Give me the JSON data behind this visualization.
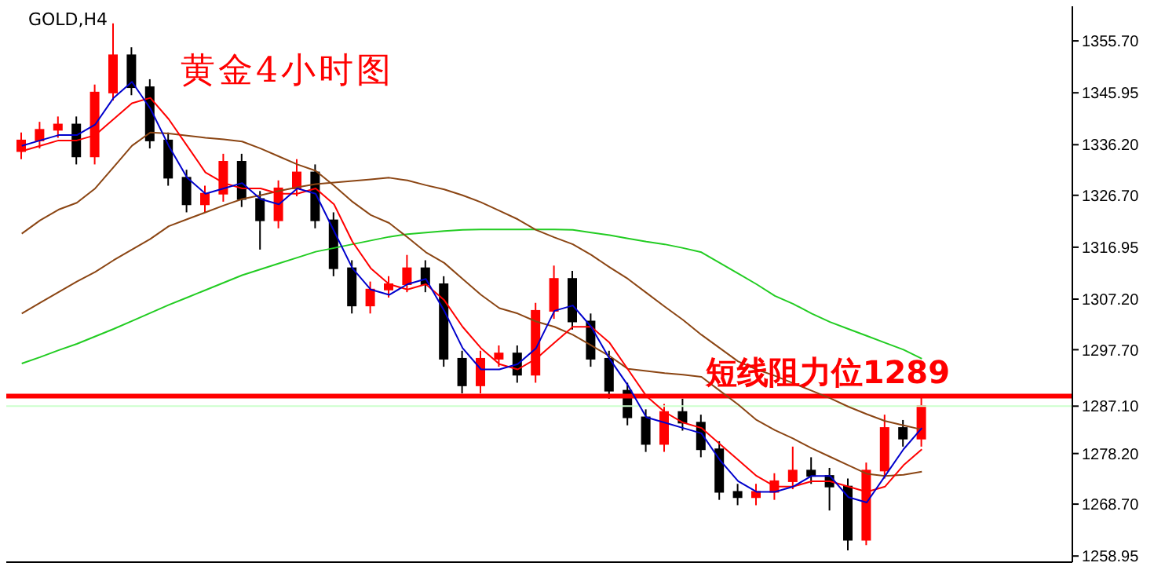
{
  "chart_data": {
    "type": "candlestick",
    "title": "GOLD,H4",
    "subtitle": "黄金4小时图",
    "categories": [
      null,
      null,
      null,
      null,
      null,
      null,
      null,
      null,
      null,
      null,
      null,
      null,
      null,
      null,
      null,
      null,
      null,
      null,
      null,
      null,
      null,
      null,
      null,
      null,
      null,
      null,
      null,
      null,
      null,
      null,
      null,
      null,
      null,
      null,
      null,
      null,
      null,
      null,
      null,
      null,
      null,
      null,
      null,
      null,
      null,
      null,
      null,
      null,
      null,
      null
    ],
    "ohlc": [
      [
        1335,
        1338.5,
        1333.5,
        1337
      ],
      [
        1337,
        1340.5,
        1335.5,
        1339
      ],
      [
        1339,
        1341.5,
        1337.5,
        1340
      ],
      [
        1340,
        1341.5,
        1332.5,
        1334
      ],
      [
        1334,
        1347.5,
        1332.5,
        1346
      ],
      [
        1346,
        1359,
        1344.5,
        1353
      ],
      [
        1353,
        1354.5,
        1345.5,
        1347
      ],
      [
        1347,
        1348.5,
        1335.5,
        1337
      ],
      [
        1337,
        1338.5,
        1328.5,
        1330
      ],
      [
        1330,
        1331.5,
        1323.5,
        1325
      ],
      [
        1325,
        1328.5,
        1323.5,
        1327
      ],
      [
        1327,
        1334.5,
        1325.5,
        1333
      ],
      [
        1333,
        1334.5,
        1324.5,
        1326
      ],
      [
        1326,
        1327.5,
        1316.5,
        1322
      ],
      [
        1322,
        1329.5,
        1320.5,
        1328
      ],
      [
        1328,
        1333.5,
        1326.5,
        1331
      ],
      [
        1331,
        1332.5,
        1320.5,
        1322
      ],
      [
        1322,
        1323.5,
        1311.5,
        1313
      ],
      [
        1313,
        1314.5,
        1304.5,
        1306
      ],
      [
        1306,
        1310.5,
        1304.5,
        1309
      ],
      [
        1309,
        1311.5,
        1307.5,
        1310
      ],
      [
        1310,
        1315.5,
        1308.5,
        1313
      ],
      [
        1313,
        1314.5,
        1308.5,
        1310
      ],
      [
        1310,
        1311.5,
        1294.5,
        1296
      ],
      [
        1296,
        1297.5,
        1289.5,
        1291
      ],
      [
        1291,
        1297.5,
        1289.5,
        1296
      ],
      [
        1296,
        1298.5,
        1294.5,
        1297
      ],
      [
        1297,
        1298.5,
        1291.5,
        1293
      ],
      [
        1293,
        1306.5,
        1291.5,
        1305
      ],
      [
        1305,
        1313.5,
        1303.5,
        1311
      ],
      [
        1311,
        1312.5,
        1301.5,
        1303
      ],
      [
        1303,
        1304.5,
        1294.5,
        1296
      ],
      [
        1296,
        1297.5,
        1288.5,
        1290
      ],
      [
        1290,
        1291.5,
        1283.5,
        1285
      ],
      [
        1285,
        1286.5,
        1278.5,
        1280
      ],
      [
        1280,
        1287.5,
        1278.5,
        1286
      ],
      [
        1286,
        1288.5,
        1282.5,
        1284
      ],
      [
        1284,
        1285.5,
        1277.5,
        1279
      ],
      [
        1279,
        1280.5,
        1269.5,
        1271
      ],
      [
        1271,
        1272.5,
        1268.5,
        1270
      ],
      [
        1270,
        1272.5,
        1268.5,
        1271
      ],
      [
        1271,
        1274.5,
        1269.5,
        1273
      ],
      [
        1273,
        1279.5,
        1271.5,
        1275
      ],
      [
        1275,
        1277.5,
        1272.5,
        1274
      ],
      [
        1274,
        1275.5,
        1267.5,
        1272
      ],
      [
        1272,
        1273.5,
        1260,
        1262
      ],
      [
        1262,
        1276.5,
        1261,
        1275
      ],
      [
        1275,
        1285.5,
        1273.5,
        1283
      ],
      [
        1283,
        1284.5,
        1279.5,
        1281
      ],
      [
        1281,
        1289,
        1279.5,
        1287.1
      ]
    ],
    "colors": [
      "#ff0000",
      "#ff0000",
      "#ff0000",
      "#000000",
      "#ff0000",
      "#ff0000",
      "#000000",
      "#000000",
      "#000000",
      "#000000",
      "#ff0000",
      "#ff0000",
      "#000000",
      "#000000",
      "#ff0000",
      "#ff0000",
      "#000000",
      "#000000",
      "#000000",
      "#ff0000",
      "#ff0000",
      "#ff0000",
      "#000000",
      "#000000",
      "#000000",
      "#ff0000",
      "#ff0000",
      "#000000",
      "#ff0000",
      "#ff0000",
      "#000000",
      "#000000",
      "#000000",
      "#000000",
      "#000000",
      "#ff0000",
      "#000000",
      "#000000",
      "#000000",
      "#000000",
      "#ff0000",
      "#ff0000",
      "#ff0000",
      "#000000",
      "#000000",
      "#000000",
      "#ff0000",
      "#ff0000",
      "#000000",
      "#ff0000"
    ],
    "series": [
      {
        "type": "line",
        "color": "#22cc22",
        "values": [
          1295.1,
          1296.3,
          1297.6,
          1298.8,
          1300.2,
          1301.6,
          1303.1,
          1304.6,
          1306.1,
          1307.5,
          1308.9,
          1310.3,
          1311.7,
          1312.8,
          1313.9,
          1315,
          1316.1,
          1316.8,
          1317.5,
          1318.2,
          1318.9,
          1319.4,
          1319.7,
          1320,
          1320.2,
          1320.3,
          1320.3,
          1320.3,
          1320.3,
          1320.3,
          1320.2,
          1319.7,
          1319.2,
          1318.6,
          1318,
          1317.5,
          1316.8,
          1316,
          1314,
          1312,
          1310,
          1307.8,
          1306.3,
          1304.5,
          1302.9,
          1301.6,
          1300.3,
          1299,
          1297.7,
          1296
        ]
      },
      {
        "type": "line",
        "color": "#8b4513",
        "values": [
          1304.5,
          1306.5,
          1308.5,
          1310.5,
          1312.3,
          1314.5,
          1316.5,
          1318.5,
          1320.9,
          1322.2,
          1323.5,
          1324.8,
          1326,
          1326.7,
          1327.5,
          1328.2,
          1328.8,
          1329.1,
          1329.4,
          1329.7,
          1330,
          1329.5,
          1328.6,
          1327.8,
          1326.7,
          1325.4,
          1323.8,
          1322.2,
          1320.2,
          1318.8,
          1317.5,
          1315.5,
          1313.2,
          1311,
          1308.4,
          1305.8,
          1303.3,
          1300.5,
          1298,
          1295.5,
          1294,
          1292.8,
          1291.4,
          1290,
          1288.6,
          1287,
          1285.6,
          1284.3,
          1283.5,
          1282.7
        ]
      },
      {
        "type": "line",
        "color": "#8b4513",
        "values": [
          1319.5,
          1322,
          1324,
          1325.3,
          1328,
          1332,
          1336,
          1338.5,
          1338.3,
          1337.9,
          1337.5,
          1337.2,
          1336.8,
          1335.5,
          1334,
          1332.5,
          1331.3,
          1328.5,
          1325.5,
          1323,
          1321.5,
          1318.8,
          1316,
          1314,
          1311,
          1308,
          1305.5,
          1304.5,
          1303,
          1302,
          1300.5,
          1298.5,
          1296.5,
          1294.1,
          1293.7,
          1293.3,
          1293,
          1292.6,
          1290,
          1287.4,
          1284.5,
          1282.6,
          1281,
          1279.2,
          1277.6,
          1276,
          1274.4,
          1274,
          1274.2,
          1274.8
        ]
      },
      {
        "type": "line",
        "color": "#ff0000",
        "values": [
          1335,
          1336,
          1337,
          1337,
          1338,
          1341,
          1344,
          1345,
          1341,
          1336,
          1331,
          1329,
          1328,
          1328,
          1327,
          1327,
          1328,
          1325,
          1318,
          1313,
          1310,
          1309,
          1310,
          1307,
          1302,
          1298,
          1295,
          1294,
          1296,
          1299,
          1302,
          1302,
          1299,
          1294,
          1289,
          1286,
          1284,
          1283,
          1280,
          1277,
          1274,
          1272,
          1272,
          1273,
          1273,
          1272,
          1271,
          1272,
          1276,
          1279
        ]
      },
      {
        "type": "line",
        "color": "#0000cc",
        "values": [
          1336,
          1337,
          1338,
          1338,
          1340,
          1345,
          1348,
          1343,
          1336,
          1330,
          1327,
          1328,
          1329,
          1326,
          1325,
          1328,
          1327,
          1320,
          1313,
          1309,
          1308,
          1310,
          1311,
          1305,
          1298,
          1294,
          1294,
          1295,
          1298,
          1305,
          1306,
          1302,
          1296,
          1291,
          1285,
          1284,
          1283,
          1282,
          1277,
          1273,
          1271,
          1271,
          1272,
          1274,
          1274,
          1270,
          1269,
          1274,
          1279,
          1283
        ]
      }
    ],
    "ylim": [
      1257.8,
      1362.2
    ],
    "yticks": [
      {
        "value": 1258.95,
        "label": "1258.95"
      },
      {
        "value": 1268.7,
        "label": "1268.70"
      },
      {
        "value": 1278.2,
        "label": "1278.20"
      },
      {
        "value": 1287.1,
        "label": "1287.10"
      },
      {
        "value": 1297.7,
        "label": "1297.70"
      },
      {
        "value": 1307.2,
        "label": "1307.20"
      },
      {
        "value": 1316.95,
        "label": "1316.95"
      },
      {
        "value": 1326.7,
        "label": "1326.70"
      },
      {
        "value": 1336.2,
        "label": "1336.20"
      },
      {
        "value": 1345.95,
        "label": "1345.95"
      },
      {
        "value": 1355.7,
        "label": "1355.70"
      }
    ],
    "ref_lines": [
      {
        "axis": "y",
        "value": 1287.1,
        "color": "#ccffcc"
      },
      {
        "axis": "y",
        "value": 1289,
        "label": "短线阻力位1289",
        "color": "#ff0000"
      }
    ],
    "grid": false,
    "legend": false
  }
}
